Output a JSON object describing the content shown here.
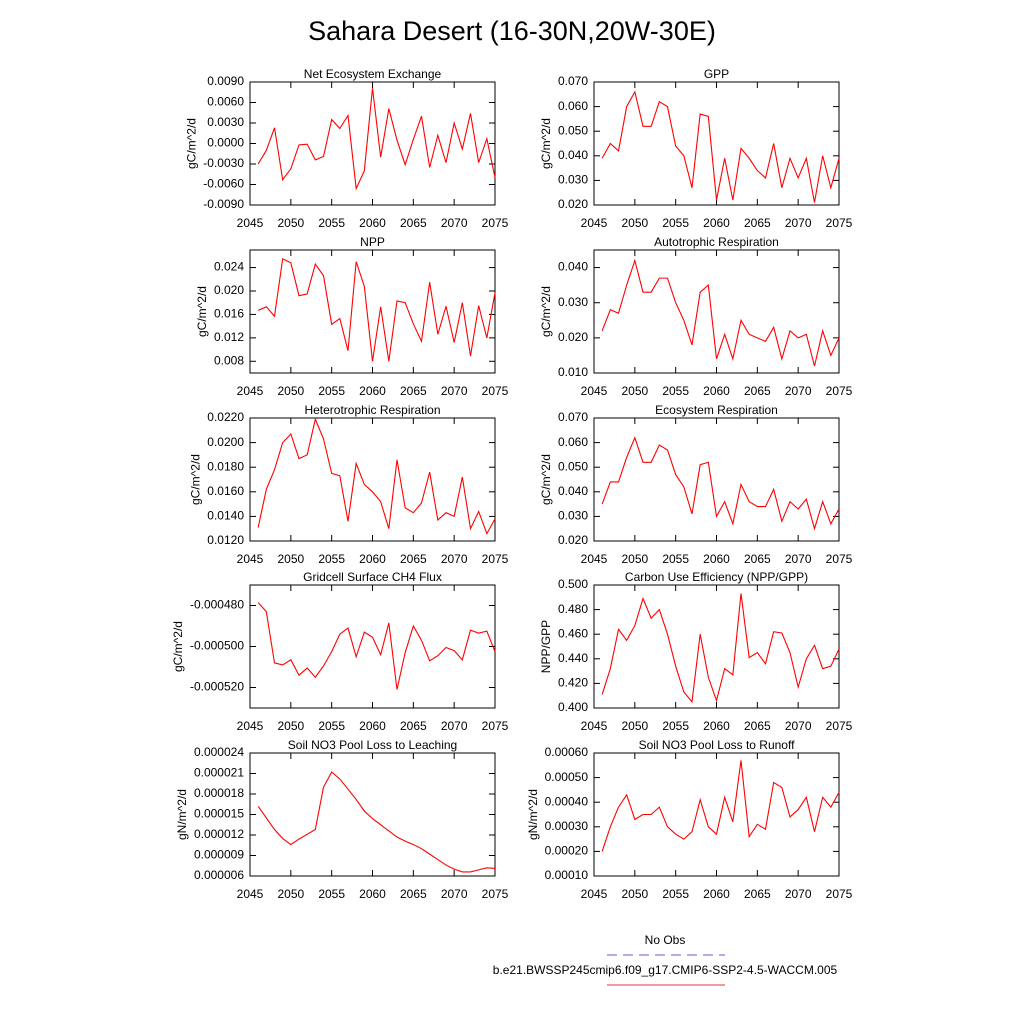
{
  "title": "Sahara Desert (16-30N,20W-30E)",
  "legend": [
    {
      "name": "No Obs",
      "color": "#5b5bd6",
      "dash": true
    },
    {
      "name": "b.e21.BWSSP245cmip6.f09_g17.CMIP6-SSP2-4.5-WACCM.005",
      "color": "#e8303a",
      "dash": false
    }
  ],
  "chart_data": [
    {
      "type": "line",
      "title": "Net Ecosystem Exchange",
      "ylabel": "gC/m^2/d",
      "color": "#ff0000",
      "x": [
        2046,
        2047,
        2048,
        2049,
        2050,
        2051,
        2052,
        2053,
        2054,
        2055,
        2056,
        2057,
        2058,
        2059,
        2060,
        2061,
        2062,
        2063,
        2064,
        2065,
        2066,
        2067,
        2068,
        2069,
        2070,
        2071,
        2072,
        2073,
        2074,
        2075
      ],
      "values": [
        -0.003,
        -0.001,
        0.0023,
        -0.0053,
        -0.0037,
        -0.0002,
        -0.0001,
        -0.0024,
        -0.0019,
        0.0035,
        0.0022,
        0.0041,
        -0.0066,
        -0.004,
        0.0081,
        -0.002,
        0.0051,
        0.0005,
        -0.0031,
        0.0006,
        0.004,
        -0.0035,
        0.0012,
        -0.0028,
        0.003,
        -0.0008,
        0.0044,
        -0.0028,
        0.0007,
        -0.005
      ],
      "xlim": [
        2045,
        2075
      ],
      "xticks": [
        2045,
        2050,
        2055,
        2060,
        2065,
        2070,
        2075
      ],
      "ylim": [
        -0.009,
        0.009
      ],
      "yticks": [
        {
          "value": -0.009,
          "label": "-0.0090"
        },
        {
          "value": -0.006,
          "label": "-0.0060"
        },
        {
          "value": -0.003,
          "label": "-0.0030"
        },
        {
          "value": 0,
          "label": "0.0000"
        },
        {
          "value": 0.003,
          "label": "0.0030"
        },
        {
          "value": 0.006,
          "label": "0.0060"
        },
        {
          "value": 0.009,
          "label": "0.0090"
        }
      ]
    },
    {
      "type": "line",
      "title": "GPP",
      "ylabel": "gC/m^2/d",
      "color": "#ff0000",
      "x": [
        2046,
        2047,
        2048,
        2049,
        2050,
        2051,
        2052,
        2053,
        2054,
        2055,
        2056,
        2057,
        2058,
        2059,
        2060,
        2061,
        2062,
        2063,
        2064,
        2065,
        2066,
        2067,
        2068,
        2069,
        2070,
        2071,
        2072,
        2073,
        2074,
        2075
      ],
      "values": [
        0.039,
        0.045,
        0.042,
        0.06,
        0.066,
        0.052,
        0.052,
        0.062,
        0.06,
        0.044,
        0.04,
        0.027,
        0.057,
        0.056,
        0.022,
        0.039,
        0.022,
        0.043,
        0.039,
        0.034,
        0.031,
        0.045,
        0.027,
        0.039,
        0.031,
        0.039,
        0.021,
        0.04,
        0.027,
        0.039
      ],
      "xlim": [
        2045,
        2075
      ],
      "xticks": [
        2045,
        2050,
        2055,
        2060,
        2065,
        2070,
        2075
      ],
      "ylim": [
        0.02,
        0.07
      ],
      "yticks": [
        {
          "value": 0.02,
          "label": "0.020"
        },
        {
          "value": 0.03,
          "label": "0.030"
        },
        {
          "value": 0.04,
          "label": "0.040"
        },
        {
          "value": 0.05,
          "label": "0.050"
        },
        {
          "value": 0.06,
          "label": "0.060"
        },
        {
          "value": 0.07,
          "label": "0.070"
        }
      ]
    },
    {
      "type": "line",
      "title": "NPP",
      "ylabel": "gC/m^2/d",
      "color": "#ff0000",
      "x": [
        2046,
        2047,
        2048,
        2049,
        2050,
        2051,
        2052,
        2053,
        2054,
        2055,
        2056,
        2057,
        2058,
        2059,
        2060,
        2061,
        2062,
        2063,
        2064,
        2065,
        2066,
        2067,
        2068,
        2069,
        2070,
        2071,
        2072,
        2073,
        2074,
        2075
      ],
      "values": [
        0.0167,
        0.0173,
        0.0157,
        0.0255,
        0.0248,
        0.0192,
        0.0195,
        0.0246,
        0.0226,
        0.0143,
        0.0153,
        0.0098,
        0.025,
        0.0208,
        0.008,
        0.0173,
        0.008,
        0.0183,
        0.018,
        0.0144,
        0.0114,
        0.0215,
        0.0126,
        0.0174,
        0.0112,
        0.018,
        0.0089,
        0.0175,
        0.012,
        0.0197
      ],
      "xlim": [
        2045,
        2075
      ],
      "xticks": [
        2045,
        2050,
        2055,
        2060,
        2065,
        2070,
        2075
      ],
      "ylim": [
        0.006,
        0.027
      ],
      "yticks": [
        0.008,
        0.012,
        0.016,
        {
          "value": 0.02,
          "label": "0.020"
        },
        0.024
      ]
    },
    {
      "type": "line",
      "title": "Autotrophic Respiration",
      "ylabel": "gC/m^2/d",
      "color": "#ff0000",
      "x": [
        2046,
        2047,
        2048,
        2049,
        2050,
        2051,
        2052,
        2053,
        2054,
        2055,
        2056,
        2057,
        2058,
        2059,
        2060,
        2061,
        2062,
        2063,
        2064,
        2065,
        2066,
        2067,
        2068,
        2069,
        2070,
        2071,
        2072,
        2073,
        2074,
        2075
      ],
      "values": [
        0.022,
        0.028,
        0.027,
        0.035,
        0.042,
        0.033,
        0.033,
        0.037,
        0.037,
        0.03,
        0.025,
        0.018,
        0.033,
        0.035,
        0.014,
        0.021,
        0.014,
        0.025,
        0.021,
        0.02,
        0.019,
        0.023,
        0.014,
        0.022,
        0.02,
        0.021,
        0.012,
        0.022,
        0.015,
        0.02
      ],
      "xlim": [
        2045,
        2075
      ],
      "xticks": [
        2045,
        2050,
        2055,
        2060,
        2065,
        2070,
        2075
      ],
      "ylim": [
        0.01,
        0.045
      ],
      "yticks": [
        {
          "value": 0.01,
          "label": "0.010"
        },
        {
          "value": 0.02,
          "label": "0.020"
        },
        {
          "value": 0.03,
          "label": "0.030"
        },
        {
          "value": 0.04,
          "label": "0.040"
        }
      ]
    },
    {
      "type": "line",
      "title": "Heterotrophic Respiration",
      "ylabel": "gC/m^2/d",
      "color": "#ff0000",
      "x": [
        2046,
        2047,
        2048,
        2049,
        2050,
        2051,
        2052,
        2053,
        2054,
        2055,
        2056,
        2057,
        2058,
        2059,
        2060,
        2061,
        2062,
        2063,
        2064,
        2065,
        2066,
        2067,
        2068,
        2069,
        2070,
        2071,
        2072,
        2073,
        2074,
        2075
      ],
      "values": [
        0.0131,
        0.0162,
        0.0178,
        0.02,
        0.0207,
        0.0187,
        0.019,
        0.0219,
        0.0203,
        0.0175,
        0.0173,
        0.0136,
        0.0183,
        0.0166,
        0.016,
        0.0152,
        0.013,
        0.0186,
        0.0147,
        0.0143,
        0.0151,
        0.0176,
        0.0137,
        0.0143,
        0.014,
        0.0172,
        0.013,
        0.0144,
        0.0126,
        0.0138
      ],
      "xlim": [
        2045,
        2075
      ],
      "xticks": [
        2045,
        2050,
        2055,
        2060,
        2065,
        2070,
        2075
      ],
      "ylim": [
        0.012,
        0.022
      ],
      "yticks": [
        {
          "value": 0.012,
          "label": "0.0120"
        },
        {
          "value": 0.014,
          "label": "0.0140"
        },
        {
          "value": 0.016,
          "label": "0.0160"
        },
        {
          "value": 0.018,
          "label": "0.0180"
        },
        {
          "value": 0.02,
          "label": "0.0200"
        },
        {
          "value": 0.022,
          "label": "0.0220"
        }
      ]
    },
    {
      "type": "line",
      "title": "Ecosystem Respiration",
      "ylabel": "gC/m^2/d",
      "color": "#ff0000",
      "x": [
        2046,
        2047,
        2048,
        2049,
        2050,
        2051,
        2052,
        2053,
        2054,
        2055,
        2056,
        2057,
        2058,
        2059,
        2060,
        2061,
        2062,
        2063,
        2064,
        2065,
        2066,
        2067,
        2068,
        2069,
        2070,
        2071,
        2072,
        2073,
        2074,
        2075
      ],
      "values": [
        0.035,
        0.044,
        0.044,
        0.054,
        0.062,
        0.052,
        0.052,
        0.059,
        0.057,
        0.047,
        0.042,
        0.031,
        0.051,
        0.052,
        0.03,
        0.036,
        0.027,
        0.043,
        0.036,
        0.034,
        0.034,
        0.041,
        0.028,
        0.036,
        0.033,
        0.037,
        0.025,
        0.036,
        0.027,
        0.033
      ],
      "xlim": [
        2045,
        2075
      ],
      "xticks": [
        2045,
        2050,
        2055,
        2060,
        2065,
        2070,
        2075
      ],
      "ylim": [
        0.02,
        0.07
      ],
      "yticks": [
        {
          "value": 0.02,
          "label": "0.020"
        },
        {
          "value": 0.03,
          "label": "0.030"
        },
        {
          "value": 0.04,
          "label": "0.040"
        },
        {
          "value": 0.05,
          "label": "0.050"
        },
        {
          "value": 0.06,
          "label": "0.060"
        },
        {
          "value": 0.07,
          "label": "0.070"
        }
      ]
    },
    {
      "type": "line",
      "title": "Gridcell Surface CH4 Flux",
      "ylabel": "gC/m^2/d",
      "color": "#ff0000",
      "x": [
        2046,
        2047,
        2048,
        2049,
        2050,
        2051,
        2052,
        2053,
        2054,
        2055,
        2056,
        2057,
        2058,
        2059,
        2060,
        2061,
        2062,
        2063,
        2064,
        2065,
        2066,
        2067,
        2068,
        2069,
        2070,
        2071,
        2072,
        2073,
        2074,
        2075
      ],
      "values": [
        -0.0004786,
        -0.000483,
        -0.000508,
        -0.000509,
        -0.0005065,
        -0.000514,
        -0.0005105,
        -0.000515,
        -0.0005095,
        -0.0005025,
        -0.000494,
        -0.000491,
        -0.000505,
        -0.000493,
        -0.0004955,
        -0.000504,
        -0.0004885,
        -0.000521,
        -0.000503,
        -0.00049,
        -0.000497,
        -0.000507,
        -0.0005045,
        -0.0005005,
        -0.000502,
        -0.0005065,
        -0.000492,
        -0.0004935,
        -0.0004925,
        -0.0005025
      ],
      "xlim": [
        2045,
        2075
      ],
      "xticks": [
        2045,
        2050,
        2055,
        2060,
        2065,
        2070,
        2075
      ],
      "ylim": [
        -0.00053,
        -0.00047
      ],
      "yticks": [
        {
          "value": -0.00052,
          "label": "-0.000520"
        },
        {
          "value": -0.0005,
          "label": "-0.000500"
        },
        {
          "value": -0.00048,
          "label": "-0.000480"
        }
      ]
    },
    {
      "type": "line",
      "title": "Carbon Use Efficiency (NPP/GPP)",
      "ylabel": "NPP/GPP",
      "color": "#ff0000",
      "x": [
        2046,
        2047,
        2048,
        2049,
        2050,
        2051,
        2052,
        2053,
        2054,
        2055,
        2056,
        2057,
        2058,
        2059,
        2060,
        2061,
        2062,
        2063,
        2064,
        2065,
        2066,
        2067,
        2068,
        2069,
        2070,
        2071,
        2072,
        2073,
        2074,
        2075
      ],
      "values": [
        0.411,
        0.432,
        0.464,
        0.455,
        0.467,
        0.489,
        0.473,
        0.48,
        0.46,
        0.434,
        0.413,
        0.405,
        0.46,
        0.425,
        0.406,
        0.432,
        0.427,
        0.493,
        0.441,
        0.445,
        0.436,
        0.462,
        0.461,
        0.445,
        0.417,
        0.44,
        0.451,
        0.432,
        0.434,
        0.448
      ],
      "xlim": [
        2045,
        2075
      ],
      "xticks": [
        2045,
        2050,
        2055,
        2060,
        2065,
        2070,
        2075
      ],
      "ylim": [
        0.4,
        0.5
      ],
      "yticks": [
        {
          "value": 0.4,
          "label": "0.400"
        },
        {
          "value": 0.42,
          "label": "0.420"
        },
        {
          "value": 0.44,
          "label": "0.440"
        },
        {
          "value": 0.46,
          "label": "0.460"
        },
        {
          "value": 0.48,
          "label": "0.480"
        },
        {
          "value": 0.5,
          "label": "0.500"
        }
      ]
    },
    {
      "type": "line",
      "title": "Soil NO3 Pool Loss to Leaching",
      "ylabel": "gN/m^2/d",
      "color": "#ff0000",
      "x": [
        2046,
        2047,
        2048,
        2049,
        2050,
        2051,
        2052,
        2053,
        2054,
        2055,
        2056,
        2057,
        2058,
        2059,
        2060,
        2061,
        2062,
        2063,
        2064,
        2065,
        2066,
        2067,
        2068,
        2069,
        2070,
        2071,
        2072,
        2073,
        2074,
        2075
      ],
      "values": [
        1.62e-05,
        1.45e-05,
        1.28e-05,
        1.15e-05,
        1.06e-05,
        1.14e-05,
        1.21e-05,
        1.28e-05,
        1.9e-05,
        2.12e-05,
        2.02e-05,
        1.87e-05,
        1.72e-05,
        1.55e-05,
        1.44e-05,
        1.35e-05,
        1.26e-05,
        1.17e-05,
        1.11e-05,
        1.06e-05,
        1e-05,
        9.2e-06,
        8.4e-06,
        7.6e-06,
        7e-06,
        6.6e-06,
        6.6e-06,
        6.9e-06,
        7.2e-06,
        7.1e-06
      ],
      "xlim": [
        2045,
        2075
      ],
      "xticks": [
        2045,
        2050,
        2055,
        2060,
        2065,
        2070,
        2075
      ],
      "ylim": [
        6e-06,
        2.4e-05
      ],
      "yticks": [
        {
          "value": 6e-06,
          "label": "0.000006"
        },
        {
          "value": 9e-06,
          "label": "0.000009"
        },
        {
          "value": 1.2e-05,
          "label": "0.000012"
        },
        {
          "value": 1.5e-05,
          "label": "0.000015"
        },
        {
          "value": 1.8e-05,
          "label": "0.000018"
        },
        {
          "value": 2.1e-05,
          "label": "0.000021"
        },
        {
          "value": 2.4e-05,
          "label": "0.000024"
        }
      ]
    },
    {
      "type": "line",
      "title": "Soil NO3 Pool Loss to Runoff",
      "ylabel": "gN/m^2/d",
      "color": "#ff0000",
      "x": [
        2046,
        2047,
        2048,
        2049,
        2050,
        2051,
        2052,
        2053,
        2054,
        2055,
        2056,
        2057,
        2058,
        2059,
        2060,
        2061,
        2062,
        2063,
        2064,
        2065,
        2066,
        2067,
        2068,
        2069,
        2070,
        2071,
        2072,
        2073,
        2074,
        2075
      ],
      "values": [
        0.0002,
        0.0003,
        0.00038,
        0.00043,
        0.00033,
        0.00035,
        0.00035,
        0.00038,
        0.0003,
        0.00027,
        0.00025,
        0.00028,
        0.00041,
        0.0003,
        0.00027,
        0.00042,
        0.00032,
        0.00057,
        0.00026,
        0.00031,
        0.00029,
        0.00048,
        0.00046,
        0.00034,
        0.00037,
        0.00042,
        0.00028,
        0.00042,
        0.00038,
        0.00044
      ],
      "xlim": [
        2045,
        2075
      ],
      "xticks": [
        2045,
        2050,
        2055,
        2060,
        2065,
        2070,
        2075
      ],
      "ylim": [
        0.0001,
        0.0006
      ],
      "yticks": [
        {
          "value": 0.0001,
          "label": "0.00010"
        },
        {
          "value": 0.0002,
          "label": "0.00020"
        },
        {
          "value": 0.0003,
          "label": "0.00030"
        },
        {
          "value": 0.0004,
          "label": "0.00040"
        },
        {
          "value": 0.0005,
          "label": "0.00050"
        },
        {
          "value": 0.0006,
          "label": "0.00060"
        }
      ]
    }
  ]
}
